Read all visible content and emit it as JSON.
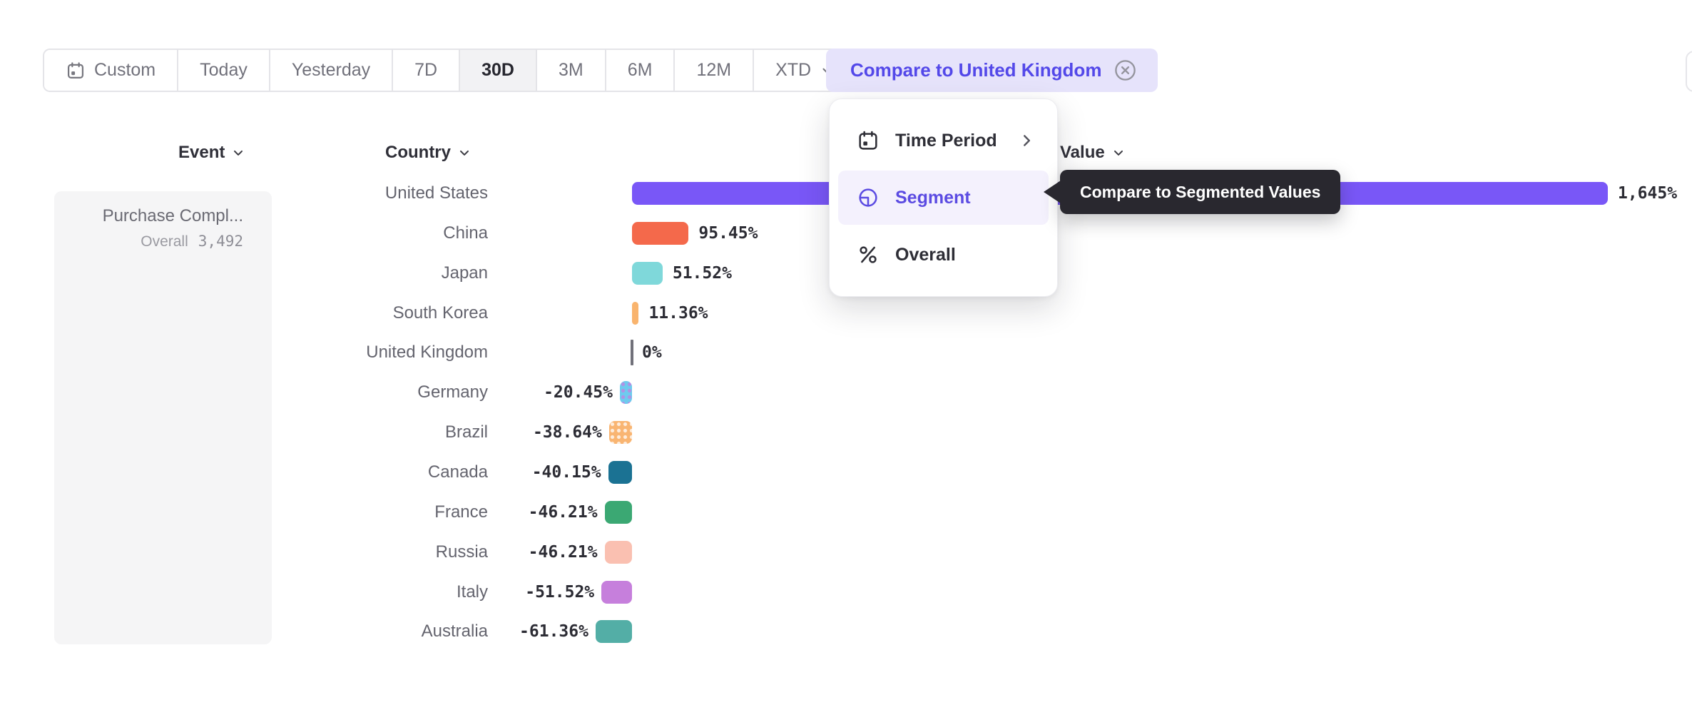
{
  "toolbar": {
    "time_range_items": [
      {
        "label": "Custom",
        "icon": "calendar-icon",
        "active": false
      },
      {
        "label": "Today",
        "active": false
      },
      {
        "label": "Yesterday",
        "active": false
      },
      {
        "label": "7D",
        "active": false
      },
      {
        "label": "30D",
        "active": true
      },
      {
        "label": "3M",
        "active": false
      },
      {
        "label": "6M",
        "active": false
      },
      {
        "label": "12M",
        "active": false
      },
      {
        "label": "XTD",
        "icon_right": "chevron-down-icon",
        "active": false
      }
    ],
    "compare_chip": {
      "label": "Compare to United Kingdom",
      "close_icon": "close-circle-icon",
      "text_color": "#5348E9",
      "bg_color": "#E6E3FB"
    }
  },
  "compare_menu": {
    "items": [
      {
        "label": "Time Period",
        "icon": "calendar-icon",
        "trailing_icon": "chevron-right-icon",
        "active": false
      },
      {
        "label": "Segment",
        "icon": "segment-icon",
        "active": true
      },
      {
        "label": "Overall",
        "icon": "percent-icon",
        "active": false
      }
    ],
    "active_color": "#5B4BE2",
    "active_bg": "#F4F1FD"
  },
  "tooltip": {
    "text": "Compare to Segmented Values",
    "bg": "#29282F",
    "color": "#FFFFFF"
  },
  "table": {
    "event_header": "Event",
    "country_header": "Country",
    "value_header": "Value",
    "event_card": {
      "title": "Purchase Compl...",
      "overall_label": "Overall",
      "overall_value": "3,492"
    }
  },
  "chart_data": {
    "type": "bar",
    "orientation": "horizontal",
    "title": "",
    "xlabel": "Value",
    "ylabel": "Country",
    "baseline": 0,
    "xlim": [
      -62,
      1700
    ],
    "grid": false,
    "legend": false,
    "categories": [
      "United States",
      "China",
      "Japan",
      "South Korea",
      "United Kingdom",
      "Germany",
      "Brazil",
      "Canada",
      "France",
      "Russia",
      "Italy",
      "Australia"
    ],
    "values": [
      1645,
      95.45,
      51.52,
      11.36,
      0,
      -20.45,
      -38.64,
      -40.15,
      -46.21,
      -46.21,
      -51.52,
      -61.36
    ],
    "value_labels": [
      "1,645%",
      "95.45%",
      "51.52%",
      "11.36%",
      "0%",
      "-20.45%",
      "-38.64%",
      "-40.15%",
      "-46.21%",
      "-46.21%",
      "-51.52%",
      "-61.36%"
    ],
    "bar_colors": [
      "#7957F7",
      "#F4694B",
      "#7FD8DA",
      "#F9B46E",
      "#71717A",
      "#6FCAEE",
      "#F9B572",
      "#1B7293",
      "#3BA873",
      "#FAC0B1",
      "#C67FDC",
      "#53AEA6"
    ],
    "bar_patterns": [
      "solid",
      "solid",
      "solid",
      "solid",
      "zero",
      "dots",
      "dots",
      "solid",
      "solid",
      "solid",
      "solid",
      "solid"
    ],
    "dot_colors": [
      "",
      "",
      "",
      "",
      "",
      "rgba(199,127,224,0.75)",
      "rgba(255,255,255,0.75)",
      "",
      "",
      "",
      "",
      ""
    ]
  }
}
